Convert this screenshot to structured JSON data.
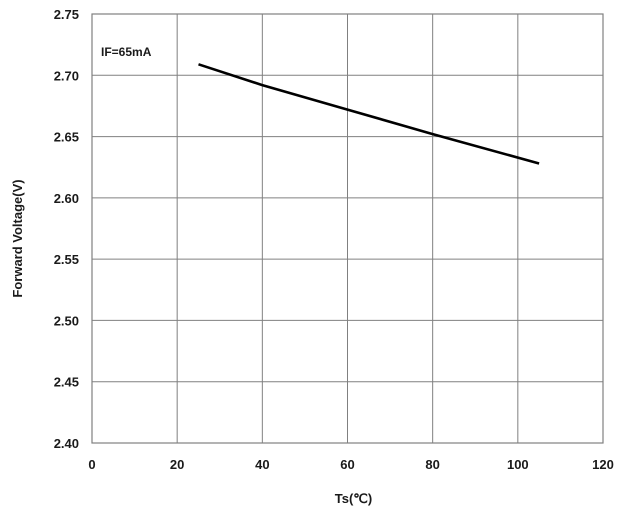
{
  "chart_data": {
    "type": "line",
    "xlabel": "Ts(℃)",
    "ylabel": "Forward Voltage(V)",
    "xlim": [
      0,
      120
    ],
    "ylim": [
      2.4,
      2.75
    ],
    "xticks": [
      0,
      20,
      40,
      60,
      80,
      100,
      120
    ],
    "yticks": [
      2.4,
      2.45,
      2.5,
      2.55,
      2.6,
      2.65,
      2.7,
      2.75
    ],
    "xtick_labels": [
      "0",
      "20",
      "40",
      "60",
      "80",
      "100",
      "120"
    ],
    "ytick_labels": [
      "2.40",
      "2.45",
      "2.50",
      "2.55",
      "2.60",
      "2.65",
      "2.70",
      "2.75"
    ],
    "grid": true,
    "annotation": "IF=65mA",
    "line_color": "#000000",
    "grid_color": "#808080",
    "series": [
      {
        "x": [
          25,
          40,
          60,
          80,
          105
        ],
        "y": [
          2.709,
          2.692,
          2.672,
          2.652,
          2.628
        ]
      }
    ]
  }
}
